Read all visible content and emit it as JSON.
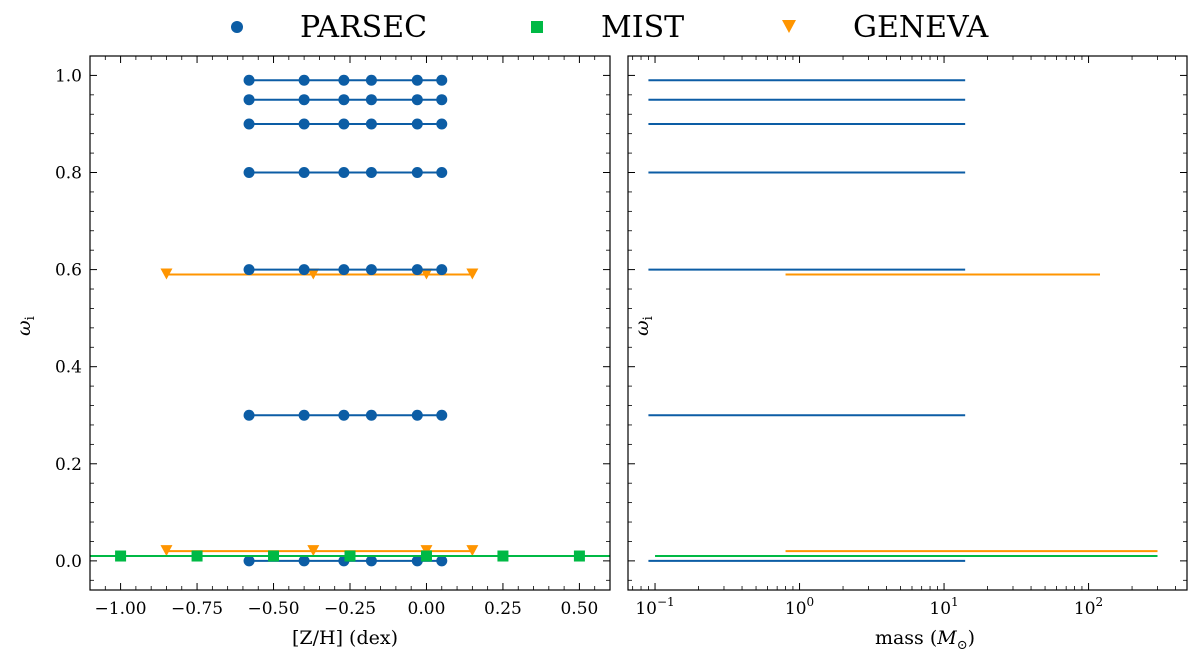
{
  "legend": [
    {
      "name": "PARSEC",
      "marker": "circle",
      "color": "#0C5DA5"
    },
    {
      "name": "MIST",
      "marker": "square",
      "color": "#00B945"
    },
    {
      "name": "GENEVA",
      "marker": "triangle-down",
      "color": "#FF9500"
    }
  ],
  "chart_data": [
    {
      "type": "scatter",
      "panel": "left",
      "xlabel": "[Z/H] (dex)",
      "ylabel": "ωi",
      "xlim": [
        -1.1,
        0.6
      ],
      "ylim": [
        -0.06,
        1.04
      ],
      "xticks": [
        -1.0,
        -0.75,
        -0.5,
        -0.25,
        0.0,
        0.25,
        0.5
      ],
      "xtick_labels": [
        "−1.00",
        "−0.75",
        "−0.50",
        "−0.25",
        "0.00",
        "0.25",
        "0.50"
      ],
      "yticks": [
        0.0,
        0.2,
        0.4,
        0.6,
        0.8,
        1.0
      ],
      "ytick_labels": [
        "0.0",
        "0.2",
        "0.4",
        "0.6",
        "0.8",
        "1.0"
      ],
      "series": [
        {
          "name": "PARSEC",
          "x": [
            -0.58,
            -0.4,
            -0.27,
            -0.18,
            -0.03,
            0.05
          ],
          "omega": [
            0.0,
            0.3,
            0.6,
            0.8,
            0.9,
            0.95,
            0.99
          ]
        },
        {
          "name": "MIST",
          "x": [
            -1.0,
            -0.75,
            -0.5,
            -0.25,
            0.0,
            0.25,
            0.5
          ],
          "omega": [
            0.01
          ]
        },
        {
          "name": "GENEVA",
          "x": [
            -0.85,
            -0.37,
            0.0,
            0.15
          ],
          "omega": [
            0.02,
            0.59
          ]
        }
      ]
    },
    {
      "type": "line",
      "panel": "right",
      "xlabel": "mass (M⊙)",
      "ylabel": "ωi",
      "xscale": "log",
      "xlim": [
        0.065,
        480
      ],
      "ylim": [
        -0.06,
        1.04
      ],
      "xticks": [
        0.1,
        1,
        10,
        100
      ],
      "xtick_labels": [
        "10−1",
        "100",
        "101",
        "102"
      ],
      "series": [
        {
          "name": "PARSEC",
          "mass_range": [
            0.09,
            14
          ],
          "omega": [
            0.0,
            0.3,
            0.6,
            0.8,
            0.9,
            0.95,
            0.99
          ]
        },
        {
          "name": "MIST",
          "mass_range": [
            0.1,
            300
          ],
          "omega": [
            0.01
          ]
        },
        {
          "name": "GENEVA",
          "mass_range": [
            0.8,
            300
          ],
          "omega": [
            0.02
          ]
        },
        {
          "name": "GENEVA",
          "mass_range": [
            0.8,
            120
          ],
          "omega": [
            0.59
          ]
        }
      ]
    }
  ]
}
